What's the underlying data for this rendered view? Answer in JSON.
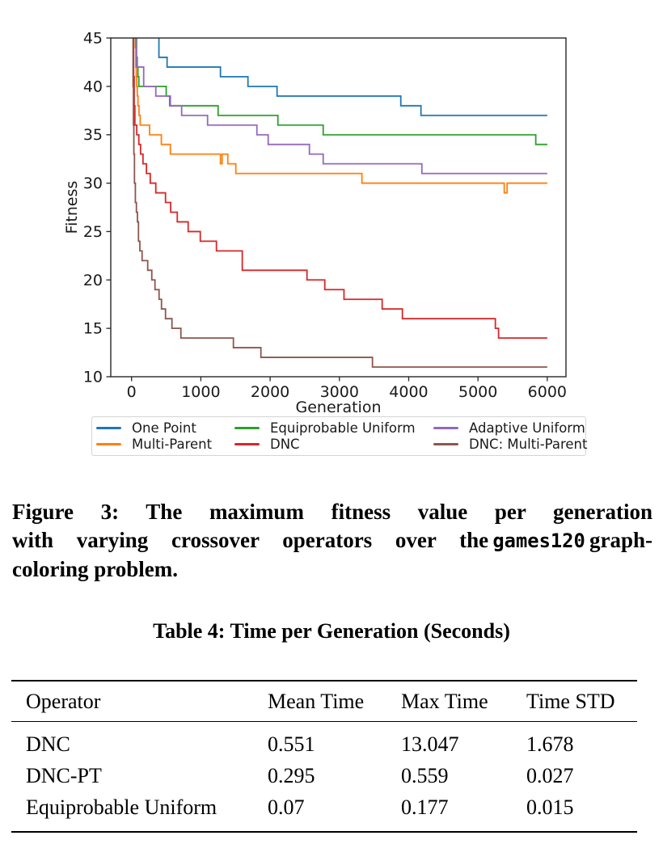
{
  "chart_data": {
    "type": "line",
    "step": true,
    "title": "",
    "xlabel": "Generation",
    "ylabel": "Fitness",
    "xlim": [
      -300,
      6270
    ],
    "ylim": [
      10,
      45
    ],
    "xticks": [
      0,
      1000,
      2000,
      3000,
      4000,
      5000,
      6000
    ],
    "yticks": [
      10,
      15,
      20,
      25,
      30,
      35,
      40,
      45
    ],
    "grid": false,
    "legend_position": "below",
    "axis_color": "#262626",
    "series": [
      {
        "name": "One Point",
        "color": "#1f77b4",
        "points": [
          [
            388,
            46
          ],
          [
            395,
            43
          ],
          [
            513,
            42
          ],
          [
            1283,
            41
          ],
          [
            1680,
            40
          ],
          [
            2100,
            39
          ],
          [
            3886,
            38
          ],
          [
            4177,
            37
          ],
          [
            6000,
            37
          ]
        ]
      },
      {
        "name": "Multi-Parent",
        "color": "#ff7f0e",
        "points": [
          [
            50,
            46
          ],
          [
            56,
            44
          ],
          [
            62,
            42
          ],
          [
            68,
            41
          ],
          [
            75,
            40
          ],
          [
            83,
            39
          ],
          [
            93,
            38
          ],
          [
            108,
            37
          ],
          [
            125,
            36
          ],
          [
            260,
            35
          ],
          [
            430,
            34
          ],
          [
            560,
            33
          ],
          [
            1283,
            32
          ],
          [
            1307,
            33
          ],
          [
            1389,
            32
          ],
          [
            1505,
            31
          ],
          [
            3325,
            30
          ],
          [
            5379,
            29
          ],
          [
            5420,
            30
          ],
          [
            6000,
            30
          ]
        ]
      },
      {
        "name": "Equiprobable Uniform",
        "color": "#2ca02c",
        "points": [
          [
            62,
            46
          ],
          [
            72,
            43
          ],
          [
            82,
            42
          ],
          [
            92,
            41
          ],
          [
            105,
            40
          ],
          [
            500,
            39
          ],
          [
            550,
            38
          ],
          [
            1249,
            37
          ],
          [
            2112,
            36
          ],
          [
            2766,
            35
          ],
          [
            5834,
            34
          ],
          [
            6000,
            34
          ]
        ]
      },
      {
        "name": "DNC",
        "color": "#d62728",
        "points": [
          [
            25,
            46
          ],
          [
            30,
            41
          ],
          [
            38,
            38
          ],
          [
            48,
            36
          ],
          [
            75,
            35
          ],
          [
            105,
            34
          ],
          [
            130,
            33
          ],
          [
            165,
            32
          ],
          [
            215,
            31
          ],
          [
            270,
            30
          ],
          [
            350,
            29
          ],
          [
            490,
            28
          ],
          [
            565,
            27
          ],
          [
            660,
            26
          ],
          [
            817,
            25
          ],
          [
            992,
            24
          ],
          [
            1225,
            23
          ],
          [
            1598,
            21
          ],
          [
            2532,
            20
          ],
          [
            2789,
            19
          ],
          [
            3066,
            18
          ],
          [
            3617,
            17
          ],
          [
            3909,
            16
          ],
          [
            5251,
            15
          ],
          [
            5297,
            14
          ],
          [
            6000,
            14
          ]
        ]
      },
      {
        "name": "Adaptive Uniform",
        "color": "#9467bd",
        "points": [
          [
            55,
            46
          ],
          [
            62,
            44
          ],
          [
            70,
            42
          ],
          [
            175,
            40
          ],
          [
            350,
            39
          ],
          [
            560,
            38
          ],
          [
            723,
            37
          ],
          [
            1097,
            36
          ],
          [
            1809,
            35
          ],
          [
            1972,
            34
          ],
          [
            2567,
            33
          ],
          [
            2766,
            32
          ],
          [
            4190,
            31
          ],
          [
            6000,
            31
          ]
        ]
      },
      {
        "name": "DNC: Multi-Parent",
        "color": "#8c564b",
        "points": [
          [
            18,
            46
          ],
          [
            22,
            40
          ],
          [
            27,
            36
          ],
          [
            33,
            33
          ],
          [
            42,
            30
          ],
          [
            55,
            28
          ],
          [
            70,
            27
          ],
          [
            85,
            26
          ],
          [
            100,
            24
          ],
          [
            120,
            23
          ],
          [
            152,
            22
          ],
          [
            233,
            21
          ],
          [
            292,
            20
          ],
          [
            338,
            19
          ],
          [
            397,
            18
          ],
          [
            432,
            17
          ],
          [
            490,
            16
          ],
          [
            583,
            15
          ],
          [
            712,
            14
          ],
          [
            1470,
            13
          ],
          [
            1867,
            12
          ],
          [
            3477,
            11
          ],
          [
            6000,
            11
          ]
        ]
      }
    ]
  },
  "caption": {
    "line1": "Figure 3: The maximum fitness value per generation",
    "line2_before": "with varying crossover operators over the",
    "line2_code": "games120",
    "line2_after": "graph-",
    "line3": "coloring problem."
  },
  "table": {
    "title": "Table 4: Time per Generation (Seconds)",
    "columns": [
      "Operator",
      "Mean Time",
      "Max Time",
      "Time STD"
    ],
    "rows": [
      [
        "DNC",
        "0.551",
        "13.047",
        "1.678"
      ],
      [
        "DNC-PT",
        "0.295",
        "0.559",
        "0.027"
      ],
      [
        "Equiprobable Uniform",
        "0.07",
        "0.177",
        "0.015"
      ]
    ]
  }
}
